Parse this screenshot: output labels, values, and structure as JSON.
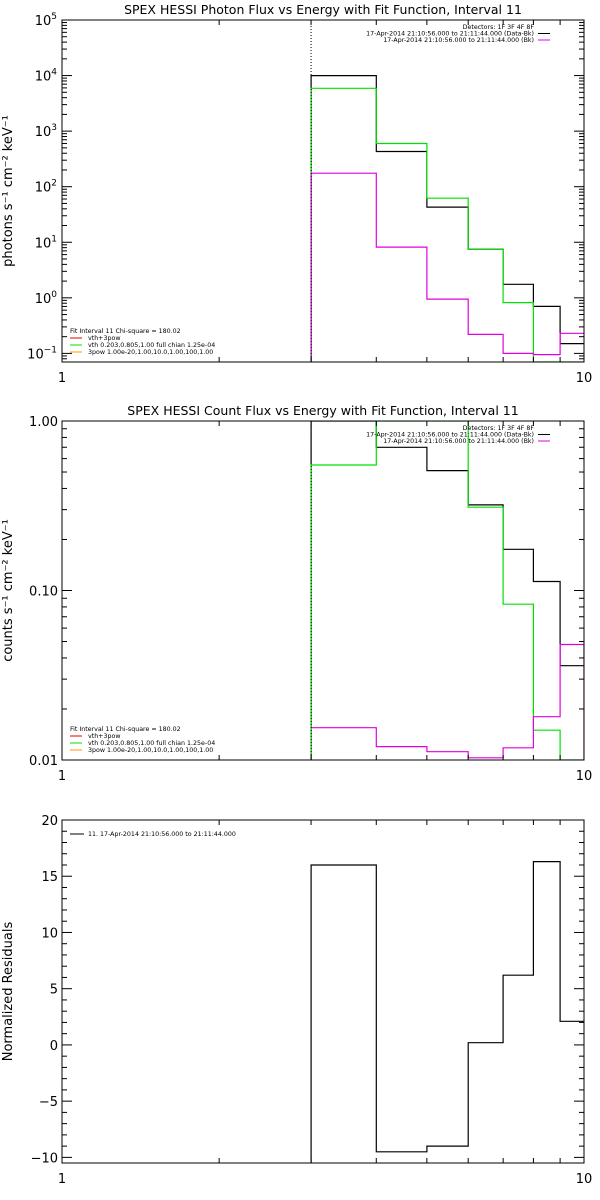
{
  "colors": {
    "black": "#000000",
    "green": "#00e000",
    "magenta": "#e000e0",
    "orange": "#ff9900"
  },
  "chart_data": [
    {
      "type": "line",
      "title": "SPEX HESSI Photon Flux vs Energy with Fit Function, Interval 11",
      "ylabel": "photons s⁻¹ cm⁻² keV⁻¹",
      "xscale": "log",
      "yscale": "log",
      "xlim": [
        1,
        10
      ],
      "ylim": [
        0.07,
        100000
      ],
      "xticks": [
        {
          "v": 1,
          "label": "1"
        },
        {
          "v": 10,
          "label": "10"
        }
      ],
      "yticks": [
        {
          "v": 0.1,
          "b": "10",
          "e": "−1"
        },
        {
          "v": 1,
          "b": "10",
          "e": "0"
        },
        {
          "v": 10,
          "b": "10",
          "e": "1"
        },
        {
          "v": 100,
          "b": "10",
          "e": "2"
        },
        {
          "v": 1000,
          "b": "10",
          "e": "3"
        },
        {
          "v": 10000,
          "b": "10",
          "e": "4"
        },
        {
          "v": 100000,
          "b": "10",
          "e": "5"
        }
      ],
      "vline": 3.0,
      "legend_top": [
        {
          "text": "Detectors: 1F 3F 4F 8F",
          "color": ""
        },
        {
          "text": "17-Apr-2014 21:10:56.000 to 21:11:44.000 (Data-Bk)",
          "color": "#000000"
        },
        {
          "text": "17-Apr-2014 21:10:56.000 to 21:11:44.000 (Bk)",
          "color": "#e000e0"
        }
      ],
      "legend_bottom": [
        {
          "text": "Fit Interval 11    Chi-square = 180.02",
          "color": ""
        },
        {
          "text": "vth+3pow",
          "color": "#e00000"
        },
        {
          "text": "vth 0.203,0.805,1.00  full chian 1.25e-04",
          "color": "#00e000"
        },
        {
          "text": "3pow 1.00e-20,1.00,10.0,1.00,100,1.00",
          "color": "#ff9900"
        }
      ],
      "series": [
        {
          "color": "#000000",
          "edges": [
            3.0,
            4.0,
            5.0,
            6.0,
            7.0,
            8.0,
            9.0,
            10.0
          ],
          "values": [
            10000,
            430,
            43,
            7.5,
            1.75,
            0.7,
            0.15
          ],
          "close_left": true,
          "close_right": false
        },
        {
          "color": "#00e000",
          "edges": [
            3.0,
            4.0,
            5.0,
            6.0,
            7.0,
            8.0,
            9.0,
            10.0
          ],
          "values": [
            5900,
            600,
            62,
            7.5,
            0.82,
            0.07,
            0.07
          ],
          "close_left": true,
          "close_right": false
        },
        {
          "color": "#e000e0",
          "edges": [
            3.0,
            4.0,
            5.0,
            6.0,
            7.0,
            8.0,
            9.0,
            10.0
          ],
          "values": [
            175,
            8.2,
            0.95,
            0.22,
            0.1,
            0.095,
            0.23
          ],
          "close_left": true,
          "close_right": false
        }
      ]
    },
    {
      "type": "line",
      "title": "SPEX HESSI Count Flux vs Energy with Fit Function, Interval 11",
      "ylabel": "counts s⁻¹ cm⁻² keV⁻¹",
      "xscale": "log",
      "yscale": "log",
      "xlim": [
        1,
        10
      ],
      "ylim": [
        0.01,
        1.0
      ],
      "xticks": [
        {
          "v": 1,
          "label": "1"
        },
        {
          "v": 10,
          "label": "10"
        }
      ],
      "yticks": [
        {
          "v": 0.01,
          "label": "0.01"
        },
        {
          "v": 0.1,
          "label": "0.10"
        },
        {
          "v": 1.0,
          "label": "1.00"
        }
      ],
      "vline": 3.0,
      "legend_top": [
        {
          "text": "Detectors: 1F 3F 4F 8F",
          "color": ""
        },
        {
          "text": "17-Apr-2014 21:10:56.000 to 21:11:44.000 (Data-Bk)",
          "color": "#000000"
        },
        {
          "text": "17-Apr-2014 21:10:56.000 to 21:11:44.000 (Bk)",
          "color": "#e000e0"
        }
      ],
      "legend_bottom": [
        {
          "text": "Fit Interval 11    Chi-square = 180.02",
          "color": ""
        },
        {
          "text": "vth+3pow",
          "color": "#e00000"
        },
        {
          "text": "vth 0.203,0.805,1.00  full chian 1.25e-04",
          "color": "#00e000"
        },
        {
          "text": "3pow 1.00e-20,1.00,10.0,1.00,100,1.00",
          "color": "#ff9900"
        }
      ],
      "series": [
        {
          "color": "#000000",
          "edges": [
            3.0,
            4.0,
            5.0,
            6.0,
            7.0,
            8.0,
            9.0,
            10.0
          ],
          "values": [
            1.0,
            0.7,
            0.51,
            0.32,
            0.175,
            0.113,
            0.036
          ],
          "close_left": true,
          "close_right": false
        },
        {
          "color": "#00e000",
          "edges": [
            3.0,
            4.0,
            5.0,
            6.0,
            7.0,
            8.0,
            9.0,
            10.0
          ],
          "values": [
            0.55,
            1.0,
            1.0,
            0.31,
            0.083,
            0.015,
            0.01
          ],
          "close_left": true,
          "close_right": false
        },
        {
          "color": "#e000e0",
          "edges": [
            3.0,
            4.0,
            5.0,
            6.0,
            7.0,
            8.0,
            9.0,
            10.0
          ],
          "values": [
            0.0155,
            0.012,
            0.0112,
            0.0103,
            0.0118,
            0.018,
            0.048
          ],
          "close_left": false,
          "close_right": true
        }
      ]
    },
    {
      "type": "line",
      "title": "",
      "ylabel": "Normalized Residuals",
      "xscale": "log",
      "yscale": "linear",
      "xlim": [
        1,
        10
      ],
      "ylim": [
        -10.5,
        20
      ],
      "xticks": [
        {
          "v": 1,
          "label": "1"
        },
        {
          "v": 10,
          "label": "10"
        }
      ],
      "yticks": [
        {
          "v": -10,
          "label": "−10"
        },
        {
          "v": -5,
          "label": "−5"
        },
        {
          "v": 0,
          "label": "0"
        },
        {
          "v": 5,
          "label": "5"
        },
        {
          "v": 10,
          "label": "10"
        },
        {
          "v": 15,
          "label": "15"
        },
        {
          "v": 20,
          "label": "20"
        }
      ],
      "vline": null,
      "legend_top": [
        {
          "text": "11. 17-Apr-2014 21:10:56.000 to 21:11:44.000",
          "color": "#000000"
        }
      ],
      "legend_bottom": [],
      "series": [
        {
          "color": "#000000",
          "edges": [
            3.0,
            4.0,
            5.0,
            6.0,
            7.0,
            8.0,
            9.0,
            10.0
          ],
          "values": [
            16,
            -9.5,
            -9.0,
            0.2,
            6.2,
            16.3,
            2.1
          ],
          "close_left": true,
          "close_right": false
        }
      ]
    }
  ]
}
